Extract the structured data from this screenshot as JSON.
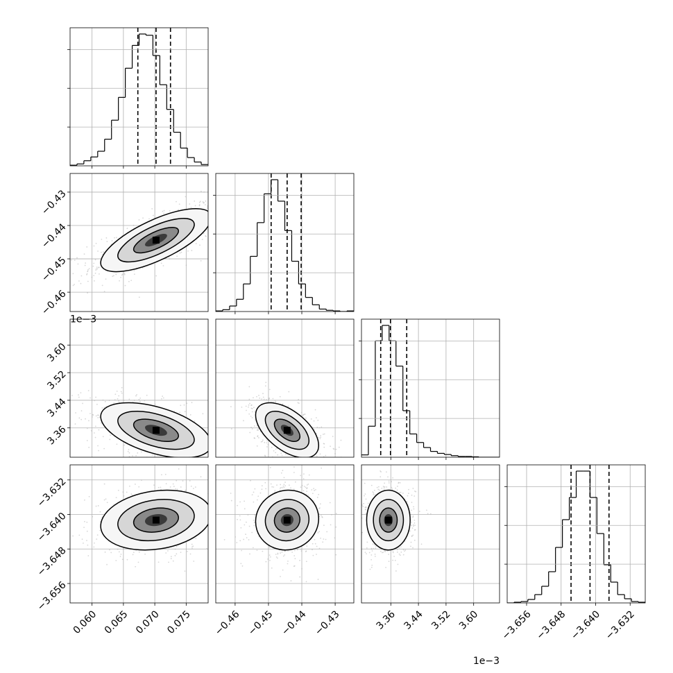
{
  "chart_data": {
    "type": "corner",
    "parameters": [
      {
        "ticks": [
          0.06,
          0.065,
          0.07,
          0.075
        ],
        "tick_labels": [
          "0.060",
          "0.065",
          "0.070",
          "0.075"
        ],
        "range": [
          0.0565,
          0.0785
        ],
        "quantiles": [
          0.0673,
          0.0702,
          0.0725
        ],
        "hist_counts": [
          1,
          3,
          8,
          14,
          23,
          42,
          72,
          108,
          154,
          190,
          208,
          206,
          174,
          128,
          89,
          53,
          28,
          13,
          6,
          2
        ]
      },
      {
        "ticks": [
          -0.46,
          -0.45,
          -0.44,
          -0.43
        ],
        "tick_labels": [
          "−0.46",
          "−0.45",
          "−0.44",
          "−0.43"
        ],
        "range": [
          -0.4658,
          -0.4244
        ],
        "quantiles": [
          -0.4492,
          -0.4444,
          -0.4402
        ],
        "hist_counts": [
          1,
          3,
          9,
          20,
          45,
          90,
          145,
          192,
          215,
          180,
          132,
          82,
          45,
          23,
          11,
          4,
          2,
          1,
          0,
          1
        ]
      },
      {
        "ticks": [
          3.36,
          3.44,
          3.52,
          3.6
        ],
        "tick_labels": [
          "3.36",
          "3.44",
          "3.52",
          "3.60"
        ],
        "range": [
          3.275,
          3.675
        ],
        "quantiles": [
          3.3307,
          3.359,
          3.4061
        ],
        "offset_text": "1e−3",
        "hist_counts": [
          6,
          80,
          300,
          340,
          300,
          235,
          120,
          60,
          38,
          25,
          15,
          10,
          7,
          4,
          2,
          2,
          1,
          0,
          0,
          0
        ]
      },
      {
        "ticks": [
          -3.656,
          -3.648,
          -3.64,
          -3.632
        ],
        "tick_labels": [
          "−3.656",
          "−3.648",
          "−3.640",
          "−3.632"
        ],
        "range": [
          -3.6605,
          -3.6285
        ],
        "quantiles": [
          -3.6457,
          -3.6413,
          -3.6369
        ],
        "offset_text": "1e−3",
        "hist_counts": [
          0,
          1,
          2,
          5,
          12,
          24,
          45,
          80,
          120,
          152,
          190,
          190,
          152,
          100,
          55,
          30,
          12,
          6,
          2,
          1
        ]
      }
    ],
    "pairs": [
      {
        "x": 0,
        "y": 1,
        "center": [
          0.0702,
          -0.4444
        ],
        "spread": [
          0.0042,
          0.0045
        ],
        "corr": 0.72
      },
      {
        "x": 0,
        "y": 2,
        "center": [
          0.0702,
          3.353
        ],
        "spread": [
          0.0042,
          0.038
        ],
        "corr": -0.5
      },
      {
        "x": 1,
        "y": 2,
        "center": [
          -0.4444,
          3.353
        ],
        "spread": [
          0.0045,
          0.038
        ],
        "corr": -0.55
      },
      {
        "x": 0,
        "y": 3,
        "center": [
          0.0702,
          -3.6413
        ],
        "spread": [
          0.0042,
          0.0033
        ],
        "corr": 0.2
      },
      {
        "x": 1,
        "y": 3,
        "center": [
          -0.4444,
          -3.6413
        ],
        "spread": [
          0.0045,
          0.0033
        ],
        "corr": 0.05
      },
      {
        "x": 2,
        "y": 3,
        "center": [
          3.353,
          -3.6413
        ],
        "spread": [
          0.03,
          0.0033
        ],
        "corr": 0.0
      }
    ],
    "colors": {
      "contour": "#000000",
      "scatter": "#b0b0b0",
      "grid": "#b0b0b0"
    }
  }
}
